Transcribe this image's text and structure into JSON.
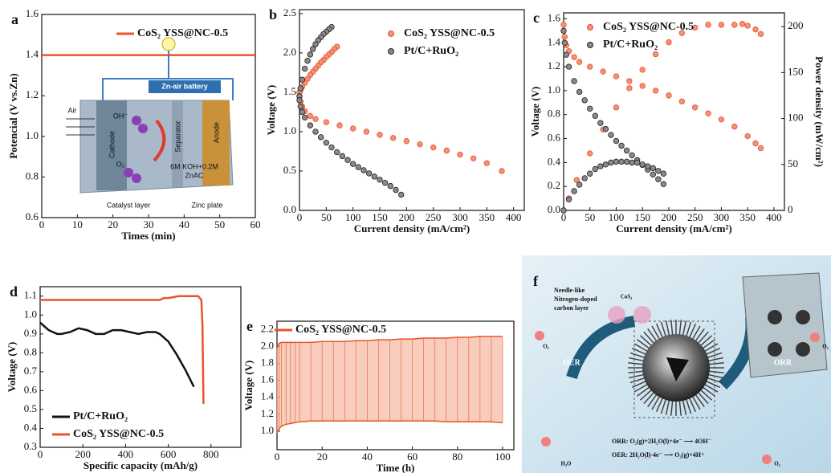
{
  "chart_data": [
    {
      "type": "line",
      "panel_label": "a",
      "xlabel": "Times (min)",
      "ylabel": "Potencial (V vs.Zn)",
      "xlim": [
        0,
        60
      ],
      "xticks": [
        0,
        10,
        20,
        30,
        40,
        50,
        60
      ],
      "ylim": [
        0.6,
        1.6
      ],
      "yticks": [
        0.6,
        0.8,
        {
          "value": 1.0,
          "label": "1.0"
        },
        1.2,
        1.4,
        1.6
      ],
      "series": [
        {
          "name": "CoS₂ YSS@NC-0.5",
          "color": "#e8542a",
          "x": [
            0,
            5,
            10,
            15,
            20,
            25,
            30,
            35,
            40,
            45,
            50,
            55,
            60
          ],
          "values": [
            1.4,
            1.4,
            1.4,
            1.4,
            1.4,
            1.4,
            1.4,
            1.4,
            1.4,
            1.4,
            1.4,
            1.4,
            1.4
          ]
        }
      ],
      "inset": {
        "title": "Zn-air battery",
        "labels": [
          "Air",
          "Cathode",
          "Separator",
          "Anode",
          "OH⁻",
          "O₂",
          "6M KOH+0.2M",
          "ZnAC",
          "Catalyst layer",
          "Zinc plate"
        ]
      }
    },
    {
      "type": "scatter",
      "panel_label": "b",
      "xlabel": "Current density (mA/cm²)",
      "ylabel": "Voltage (V)",
      "xlim": [
        0,
        420
      ],
      "xticks": [
        0,
        50,
        100,
        150,
        200,
        250,
        300,
        350,
        400
      ],
      "ylim": [
        0,
        2.55
      ],
      "yticks": [
        {
          "value": 0,
          "label": "0.0"
        },
        0.5,
        {
          "value": 1,
          "label": "1.0"
        },
        1.5,
        {
          "value": 2,
          "label": "2.0"
        },
        2.5
      ],
      "series": [
        {
          "name": "CoS₂ YSS@NC-0.5",
          "color": "#e8542a",
          "x": [
            70,
            65,
            60,
            55,
            50,
            45,
            40,
            35,
            30,
            25,
            20,
            15,
            10,
            5,
            2,
            0,
            0,
            2,
            5,
            10,
            20,
            30,
            50,
            75,
            100,
            125,
            150,
            175,
            200,
            225,
            250,
            275,
            300,
            325,
            350,
            378
          ],
          "values": [
            2.08,
            2.05,
            2.01,
            1.98,
            1.95,
            1.91,
            1.88,
            1.84,
            1.8,
            1.76,
            1.72,
            1.67,
            1.62,
            1.57,
            1.53,
            1.5,
            1.45,
            1.38,
            1.32,
            1.26,
            1.2,
            1.16,
            1.12,
            1.08,
            1.04,
            1.0,
            0.96,
            0.92,
            0.88,
            0.84,
            0.8,
            0.76,
            0.71,
            0.66,
            0.6,
            0.5
          ]
        },
        {
          "name": "Pt/C+RuO₂",
          "color": "#222222",
          "x": [
            60,
            55,
            50,
            45,
            40,
            35,
            30,
            25,
            20,
            15,
            10,
            5,
            2,
            0,
            0,
            2,
            5,
            10,
            20,
            30,
            40,
            50,
            60,
            70,
            80,
            90,
            100,
            110,
            120,
            130,
            140,
            150,
            160,
            170,
            180,
            190
          ],
          "values": [
            2.33,
            2.3,
            2.27,
            2.24,
            2.2,
            2.16,
            2.11,
            2.05,
            1.98,
            1.9,
            1.8,
            1.66,
            1.55,
            1.45,
            1.4,
            1.32,
            1.25,
            1.18,
            1.08,
            1.0,
            0.93,
            0.86,
            0.8,
            0.74,
            0.69,
            0.64,
            0.59,
            0.55,
            0.51,
            0.47,
            0.43,
            0.39,
            0.35,
            0.31,
            0.26,
            0.2
          ]
        }
      ]
    },
    {
      "type": "scatter",
      "panel_label": "c",
      "xlabel": "Current density (mA/cm²)",
      "ylabel": "Voltage (V)",
      "y2label": "Power density (mW/cm²)",
      "xlim": [
        0,
        420
      ],
      "xticks": [
        0,
        50,
        100,
        150,
        200,
        250,
        300,
        350,
        400
      ],
      "ylim": [
        0,
        1.65
      ],
      "yticks": [
        {
          "value": 0,
          "label": "0.0"
        },
        0.2,
        0.4,
        0.6,
        0.8,
        {
          "value": 1,
          "label": "1.0"
        },
        1.2,
        1.4,
        1.6
      ],
      "y2lim": [
        0,
        215
      ],
      "y2ticks": [
        0,
        50,
        100,
        150,
        200
      ],
      "series": [
        {
          "name": "CoS₂ YSS@NC-0.5",
          "color": "#e8542a",
          "x": [
            0,
            2,
            5,
            10,
            20,
            30,
            50,
            75,
            100,
            125,
            150,
            175,
            200,
            225,
            250,
            275,
            300,
            325,
            350,
            365,
            375
          ],
          "values": [
            1.55,
            1.45,
            1.38,
            1.33,
            1.28,
            1.24,
            1.2,
            1.16,
            1.12,
            1.08,
            1.04,
            1.0,
            0.96,
            0.91,
            0.86,
            0.81,
            0.76,
            0.7,
            0.62,
            0.56,
            0.52
          ],
          "power_x": [
            0,
            10,
            25,
            50,
            75,
            100,
            125,
            150,
            175,
            200,
            225,
            250,
            275,
            300,
            325,
            340,
            350,
            365,
            375
          ],
          "power_values": [
            0,
            13,
            33,
            62,
            88,
            112,
            133,
            153,
            170,
            183,
            193,
            199,
            202,
            202,
            202,
            203,
            201,
            197,
            192
          ]
        },
        {
          "name": "Pt/C+RuO₂",
          "color": "#222222",
          "x": [
            0,
            2,
            5,
            10,
            20,
            30,
            40,
            50,
            60,
            70,
            80,
            90,
            100,
            110,
            120,
            130,
            140,
            150,
            160,
            170,
            180,
            190
          ],
          "values": [
            1.5,
            1.4,
            1.3,
            1.2,
            1.08,
            0.99,
            0.92,
            0.85,
            0.79,
            0.73,
            0.68,
            0.63,
            0.58,
            0.54,
            0.5,
            0.46,
            0.42,
            0.38,
            0.34,
            0.3,
            0.26,
            0.22
          ],
          "power_x": [
            0,
            10,
            20,
            30,
            40,
            50,
            60,
            70,
            80,
            90,
            100,
            110,
            120,
            130,
            140,
            150,
            160,
            170,
            180,
            190
          ],
          "power_values": [
            0,
            12,
            21,
            28,
            35,
            40,
            45,
            48,
            50,
            52,
            53,
            53,
            53,
            52,
            52,
            50,
            48,
            46,
            43,
            40
          ]
        }
      ]
    },
    {
      "type": "line",
      "panel_label": "d",
      "xlabel": "Specific capacity (mAh/g)",
      "ylabel": "Voltage (V)",
      "xlim": [
        0,
        940
      ],
      "xticks": [
        0,
        200,
        400,
        600,
        800
      ],
      "ylim": [
        0.3,
        1.15
      ],
      "yticks": [
        0.3,
        0.4,
        0.5,
        0.6,
        0.7,
        0.8,
        0.9,
        {
          "value": 1,
          "label": "1.0"
        },
        1.1
      ],
      "series": [
        {
          "name": "Pt/C+RuO₂",
          "color": "#111111",
          "x": [
            0,
            20,
            40,
            60,
            80,
            100,
            140,
            180,
            220,
            260,
            300,
            340,
            380,
            420,
            460,
            500,
            540,
            560,
            600,
            640,
            680,
            720
          ],
          "values": [
            0.96,
            0.94,
            0.92,
            0.91,
            0.9,
            0.9,
            0.91,
            0.93,
            0.92,
            0.9,
            0.9,
            0.92,
            0.92,
            0.91,
            0.9,
            0.91,
            0.91,
            0.9,
            0.86,
            0.79,
            0.71,
            0.62
          ]
        },
        {
          "name": "CoS₂ YSS@NC-0.5",
          "color": "#e8542a",
          "x": [
            0,
            100,
            200,
            300,
            400,
            500,
            560,
            580,
            600,
            650,
            700,
            740,
            755,
            760,
            763,
            765
          ],
          "values": [
            1.08,
            1.08,
            1.08,
            1.08,
            1.08,
            1.08,
            1.08,
            1.09,
            1.09,
            1.1,
            1.1,
            1.1,
            1.08,
            0.95,
            0.7,
            0.53
          ]
        }
      ]
    },
    {
      "type": "band",
      "panel_label": "e",
      "xlabel": "Time (h)",
      "ylabel": "Voltage (V)",
      "xlim": [
        0,
        105
      ],
      "xticks": [
        0,
        20,
        40,
        60,
        80,
        100
      ],
      "ylim": [
        0.78,
        2.3
      ],
      "yticks": [
        {
          "value": 1,
          "label": "1.0"
        },
        1.2,
        1.4,
        1.6,
        1.8,
        {
          "value": 2,
          "label": "2.0"
        },
        2.2
      ],
      "series": [
        {
          "name": "CoS₂ YSS@NC-0.5",
          "color": "#e8542a",
          "x": [
            0,
            1,
            2,
            4,
            6,
            8,
            10,
            15,
            20,
            25,
            30,
            35,
            40,
            45,
            50,
            55,
            60,
            65,
            70,
            75,
            80,
            85,
            90,
            95,
            100
          ],
          "values": [
            1.98,
            2.04,
            2.05,
            2.05,
            2.05,
            2.05,
            2.05,
            2.05,
            2.06,
            2.06,
            2.06,
            2.07,
            2.07,
            2.08,
            2.08,
            2.09,
            2.09,
            2.1,
            2.1,
            2.1,
            2.11,
            2.11,
            2.12,
            2.12,
            2.12
          ],
          "lower_values": [
            0.98,
            1.03,
            1.06,
            1.08,
            1.09,
            1.1,
            1.11,
            1.12,
            1.12,
            1.12,
            1.12,
            1.12,
            1.12,
            1.12,
            1.12,
            1.12,
            1.12,
            1.12,
            1.12,
            1.11,
            1.11,
            1.11,
            1.11,
            1.11,
            1.1
          ]
        }
      ]
    }
  ],
  "illustration": {
    "panel_label": "f",
    "labels": [
      "Needle-like",
      "Nitrogen-doped",
      "carbon layer",
      "CoS₂",
      "OER",
      "ORR",
      "O₂",
      "O₂",
      "O₂",
      "H₂O",
      "ORR: O₂(g)+2H₂O(l)+4e⁻ ⟶ 4OH⁻",
      "OER: 2H₂O(l)-4e⁻ ⟶ O₂(g)+4H⁺"
    ]
  }
}
